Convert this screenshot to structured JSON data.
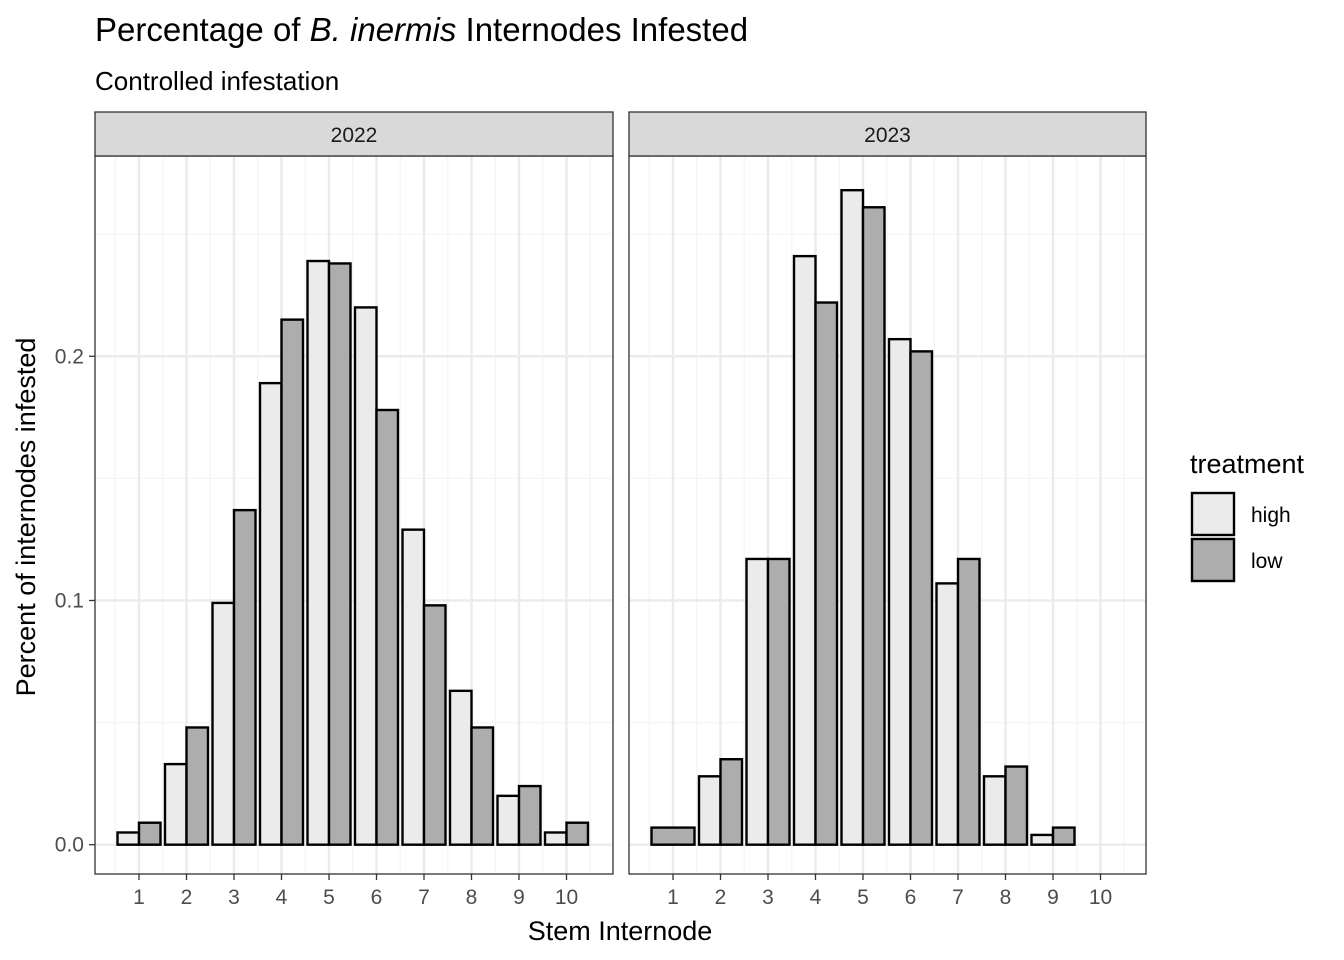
{
  "chart_data": {
    "type": "bar",
    "title": {
      "prefix": "Percentage of ",
      "italic": "B. inermis",
      "suffix": " Internodes Infested"
    },
    "subtitle": "Controlled infestation",
    "xlabel": "Stem Internode",
    "ylabel": "Percent of internodes infested",
    "categories": [
      "1",
      "2",
      "3",
      "4",
      "5",
      "6",
      "7",
      "8",
      "9",
      "10"
    ],
    "y_ticks": [
      "0.0",
      "0.1",
      "0.2"
    ],
    "ylim": [
      -0.012,
      0.282
    ],
    "grid": true,
    "legend": {
      "title": "treatment",
      "position": "right",
      "entries": [
        {
          "name": "high",
          "color": "#ebebeb"
        },
        {
          "name": "low",
          "color": "#adadad"
        }
      ]
    },
    "panels": [
      {
        "label": "2022",
        "series": [
          {
            "name": "high",
            "values": [
              0.005,
              0.033,
              0.099,
              0.189,
              0.239,
              0.22,
              0.129,
              0.063,
              0.02,
              0.005
            ]
          },
          {
            "name": "low",
            "values": [
              0.009,
              0.048,
              0.137,
              0.215,
              0.238,
              0.178,
              0.098,
              0.048,
              0.024,
              0.009
            ]
          }
        ]
      },
      {
        "label": "2023",
        "series": [
          {
            "name": "high",
            "values": [
              null,
              0.028,
              0.117,
              0.241,
              0.268,
              0.207,
              0.107,
              0.028,
              0.004,
              null
            ]
          },
          {
            "name": "low",
            "values": [
              0.007,
              0.035,
              0.117,
              0.222,
              0.261,
              0.202,
              0.117,
              0.032,
              0.007,
              null
            ]
          }
        ],
        "notes": "At internode 1 in 2023 a single full-width bar is shown (one treatment only)."
      }
    ]
  },
  "colors": {
    "high": "#ebebeb",
    "low": "#adadad",
    "strip_fill": "#d9d9d9",
    "grid_major": "#ebebeb",
    "grid_minor": "#f5f5f5",
    "panel_border": "#333333"
  }
}
